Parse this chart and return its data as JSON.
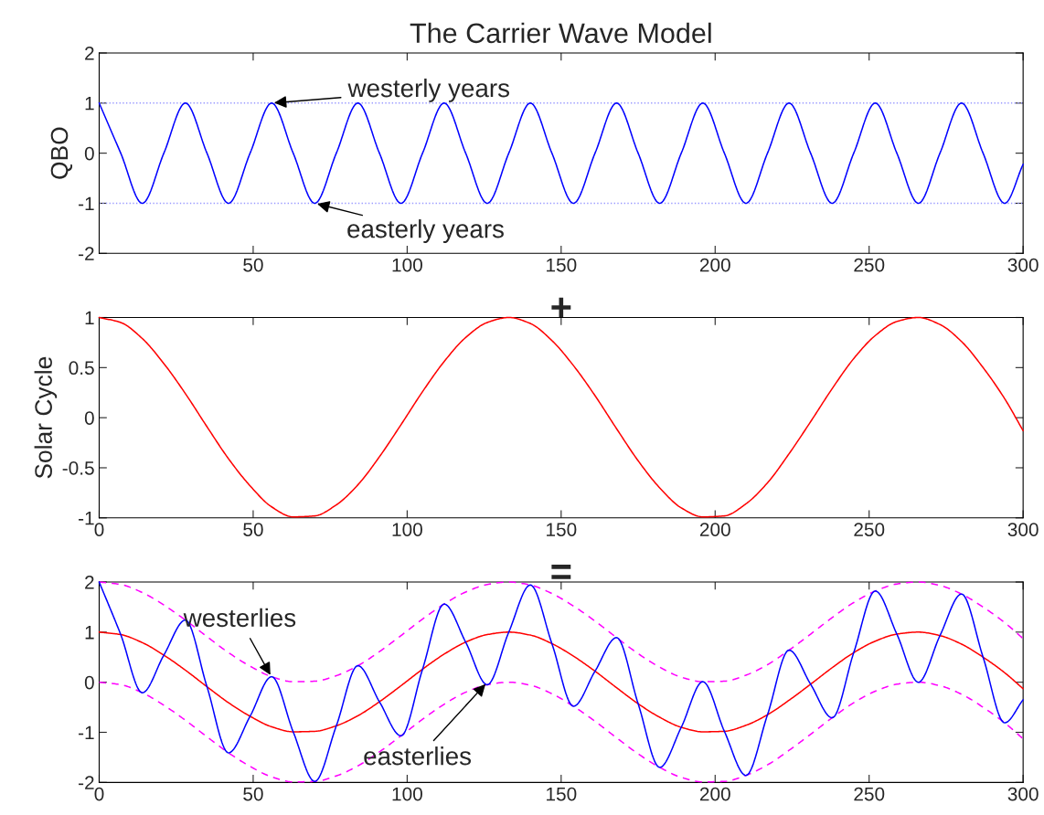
{
  "chart_data": [
    {
      "type": "line",
      "title": "The Carrier Wave Model",
      "ylabel": "QBO",
      "x": [
        0,
        7,
        14,
        21,
        28,
        35,
        42,
        49,
        56,
        63,
        70,
        77,
        84,
        91,
        98,
        105,
        112,
        119,
        126,
        133,
        140,
        147,
        154,
        161,
        168,
        175,
        182,
        189,
        196,
        203,
        210,
        217,
        224,
        231,
        238,
        245,
        252,
        259,
        266,
        273,
        280,
        287,
        294,
        300
      ],
      "series": [
        {
          "color": "#0000ff",
          "values": [
            1,
            0,
            -1,
            0,
            1,
            0,
            -1,
            0,
            1,
            0,
            -1,
            0,
            1,
            0,
            -1,
            0,
            1,
            0,
            -1,
            0,
            1,
            0,
            -1,
            0,
            1,
            0,
            -1,
            0,
            1,
            0,
            -1,
            0,
            1,
            0,
            -1,
            0,
            1,
            0,
            -1,
            0,
            1,
            0,
            -1,
            -0.22
          ]
        }
      ],
      "xlim": [
        0,
        300
      ],
      "xticks": [
        50,
        100,
        150,
        200,
        250,
        300
      ],
      "ylim": [
        -2,
        2
      ],
      "yticks": [
        -2,
        -1,
        0,
        1,
        2
      ],
      "ref_lines": [
        {
          "axis": "y",
          "value": 1,
          "color": "#9999ff",
          "line_style": "dotted"
        },
        {
          "axis": "y",
          "value": -1,
          "color": "#9999ff",
          "line_style": "dotted"
        }
      ],
      "annotations": [
        {
          "text": "westerly years",
          "x": 56,
          "y": 1
        },
        {
          "text": "easterly years",
          "x": 70,
          "y": -1
        }
      ],
      "grid": false,
      "legend": false
    },
    {
      "type": "line",
      "title": "+",
      "ylabel": "Solar Cycle",
      "x": [
        0,
        7,
        14,
        21,
        28,
        35,
        42,
        49,
        56,
        63,
        70,
        77,
        84,
        91,
        98,
        105,
        112,
        119,
        126,
        133,
        140,
        147,
        154,
        161,
        168,
        175,
        182,
        189,
        196,
        203,
        210,
        217,
        224,
        231,
        238,
        245,
        252,
        259,
        266,
        273,
        280,
        287,
        294,
        300
      ],
      "series": [
        {
          "color": "#ff0000",
          "values": [
            1,
            0.95,
            0.79,
            0.54,
            0.24,
            -0.09,
            -0.41,
            -0.68,
            -0.89,
            -0.99,
            -0.98,
            -0.87,
            -0.67,
            -0.39,
            -0.07,
            0.26,
            0.56,
            0.8,
            0.95,
            1,
            0.94,
            0.77,
            0.52,
            0.22,
            -0.11,
            -0.43,
            -0.7,
            -0.9,
            -0.99,
            -0.98,
            -0.86,
            -0.65,
            -0.36,
            -0.04,
            0.29,
            0.59,
            0.82,
            0.96,
            1,
            0.93,
            0.76,
            0.5,
            0.19,
            -0.13
          ]
        }
      ],
      "xlim": [
        0,
        300
      ],
      "xticks": [
        0,
        50,
        100,
        150,
        200,
        250,
        300
      ],
      "ylim": [
        -1,
        1
      ],
      "yticks": [
        -1,
        -0.5,
        0,
        0.5,
        1
      ],
      "grid": false,
      "legend": false
    },
    {
      "type": "line",
      "title": "=",
      "x": [
        0,
        7,
        14,
        21,
        28,
        35,
        42,
        49,
        56,
        63,
        70,
        77,
        84,
        91,
        98,
        105,
        112,
        119,
        126,
        133,
        140,
        147,
        154,
        161,
        168,
        175,
        182,
        189,
        196,
        203,
        210,
        217,
        224,
        231,
        238,
        245,
        252,
        259,
        266,
        273,
        280,
        287,
        294,
        300
      ],
      "series": [
        {
          "color": "#ff00ff",
          "line_style": "dashed",
          "values": [
            2,
            1.95,
            1.79,
            1.54,
            1.24,
            0.91,
            0.59,
            0.32,
            0.11,
            0.01,
            0.02,
            0.13,
            0.33,
            0.61,
            0.93,
            1.26,
            1.56,
            1.8,
            1.95,
            2,
            1.94,
            1.77,
            1.52,
            1.22,
            0.89,
            0.57,
            0.3,
            0.1,
            0.01,
            0.02,
            0.14,
            0.35,
            0.64,
            0.96,
            1.29,
            1.59,
            1.82,
            1.96,
            2,
            1.93,
            1.76,
            1.5,
            1.19,
            0.87
          ]
        },
        {
          "color": "#ff00ff",
          "line_style": "dashed",
          "values": [
            0,
            -0.05,
            -0.21,
            -0.46,
            -0.76,
            -1.09,
            -1.41,
            -1.68,
            -1.89,
            -1.99,
            -1.98,
            -1.87,
            -1.67,
            -1.39,
            -1.07,
            -0.74,
            -0.44,
            -0.2,
            -0.05,
            0,
            -0.06,
            -0.23,
            -0.48,
            -0.78,
            -1.11,
            -1.43,
            -1.7,
            -1.9,
            -1.99,
            -1.98,
            -1.86,
            -1.65,
            -1.36,
            -1.04,
            -0.71,
            -0.41,
            -0.18,
            -0.04,
            0,
            -0.07,
            -0.24,
            -0.5,
            -0.81,
            -1.13
          ]
        },
        {
          "color": "#ff0000",
          "values": [
            1,
            0.95,
            0.79,
            0.54,
            0.24,
            -0.09,
            -0.41,
            -0.68,
            -0.89,
            -0.99,
            -0.98,
            -0.87,
            -0.67,
            -0.39,
            -0.07,
            0.26,
            0.56,
            0.8,
            0.95,
            1,
            0.94,
            0.77,
            0.52,
            0.22,
            -0.11,
            -0.43,
            -0.7,
            -0.9,
            -0.99,
            -0.98,
            -0.86,
            -0.65,
            -0.36,
            -0.04,
            0.29,
            0.59,
            0.82,
            0.96,
            1,
            0.93,
            0.76,
            0.5,
            0.19,
            -0.13
          ]
        },
        {
          "color": "#0000ff",
          "values": [
            2,
            0.95,
            -0.21,
            0.54,
            1.24,
            -0.09,
            -1.41,
            -0.68,
            0.11,
            -0.99,
            -1.98,
            -0.87,
            0.33,
            -0.39,
            -1.07,
            0.26,
            1.56,
            0.8,
            -0.05,
            1,
            1.94,
            0.77,
            -0.48,
            0.22,
            0.89,
            -0.43,
            -1.7,
            -0.9,
            0.01,
            -0.98,
            -1.86,
            -0.65,
            0.64,
            -0.04,
            -0.71,
            0.59,
            1.82,
            0.96,
            0,
            0.93,
            1.76,
            0.5,
            -0.81,
            -0.35
          ]
        }
      ],
      "xlim": [
        0,
        300
      ],
      "xticks": [
        0,
        50,
        100,
        150,
        200,
        250,
        300
      ],
      "ylim": [
        -2,
        2
      ],
      "yticks": [
        -2,
        -1,
        0,
        1,
        2
      ],
      "annotations": [
        {
          "text": "westerlies",
          "x": 56,
          "y": 0.1
        },
        {
          "text": "easterlies",
          "x": 126,
          "y": 0
        }
      ],
      "grid": false,
      "legend": false
    }
  ]
}
